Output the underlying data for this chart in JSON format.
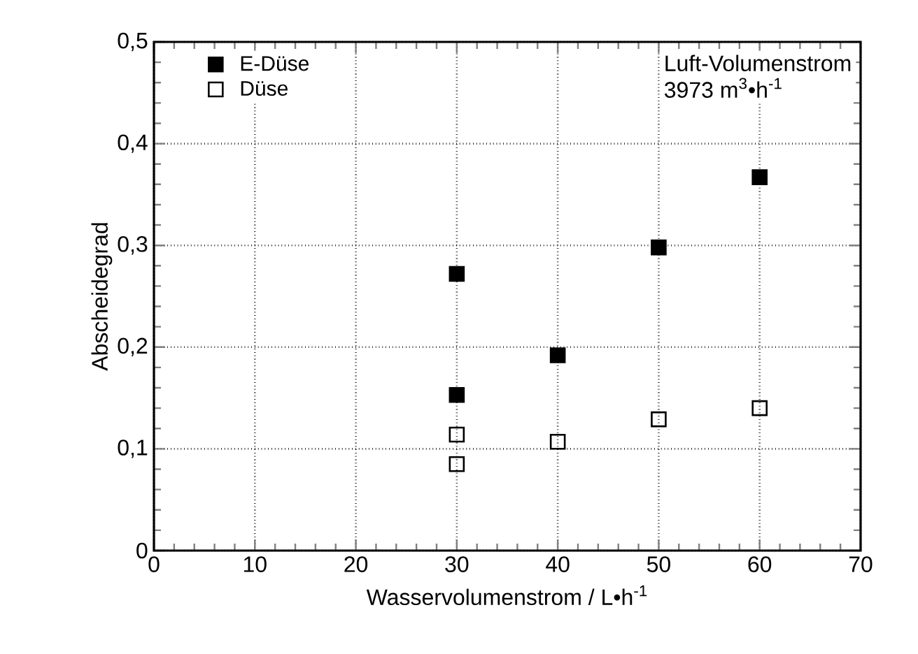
{
  "chart_data": {
    "type": "scatter",
    "xlabel": "Wasservolumenstrom / L•h$^{-1}$",
    "ylabel": "Abscheidegrad",
    "annotations": [
      "Luft-Volumenstrom",
      "3973 m$^{3}$•h$^{-1}$"
    ],
    "series": [
      {
        "name": "E-Düse",
        "color": "#000000",
        "marker": "square",
        "x": [
          30,
          30,
          40,
          50,
          60
        ],
        "values": [
          0.272,
          0.153,
          0.192,
          0.298,
          0.367
        ]
      },
      {
        "name": "Düse",
        "color": "#000000",
        "marker": "square",
        "x": [
          30,
          30,
          40,
          50,
          60
        ],
        "values": [
          0.114,
          0.085,
          0.107,
          0.129,
          0.14
        ]
      }
    ],
    "xlim": [
      0,
      70
    ],
    "xticks": [
      0,
      10,
      20,
      30,
      40,
      50,
      60,
      70
    ],
    "ylim": [
      0,
      0.5
    ],
    "yticks": [
      0,
      {
        "value": 0.1,
        "label": "0,1"
      },
      {
        "value": 0.2,
        "label": "0,2"
      },
      {
        "value": 0.3,
        "label": "0,3"
      },
      {
        "value": 0.4,
        "label": "0,4"
      },
      {
        "value": 0.5,
        "label": "0,5"
      }
    ],
    "grid": true,
    "legend": "top left"
  }
}
